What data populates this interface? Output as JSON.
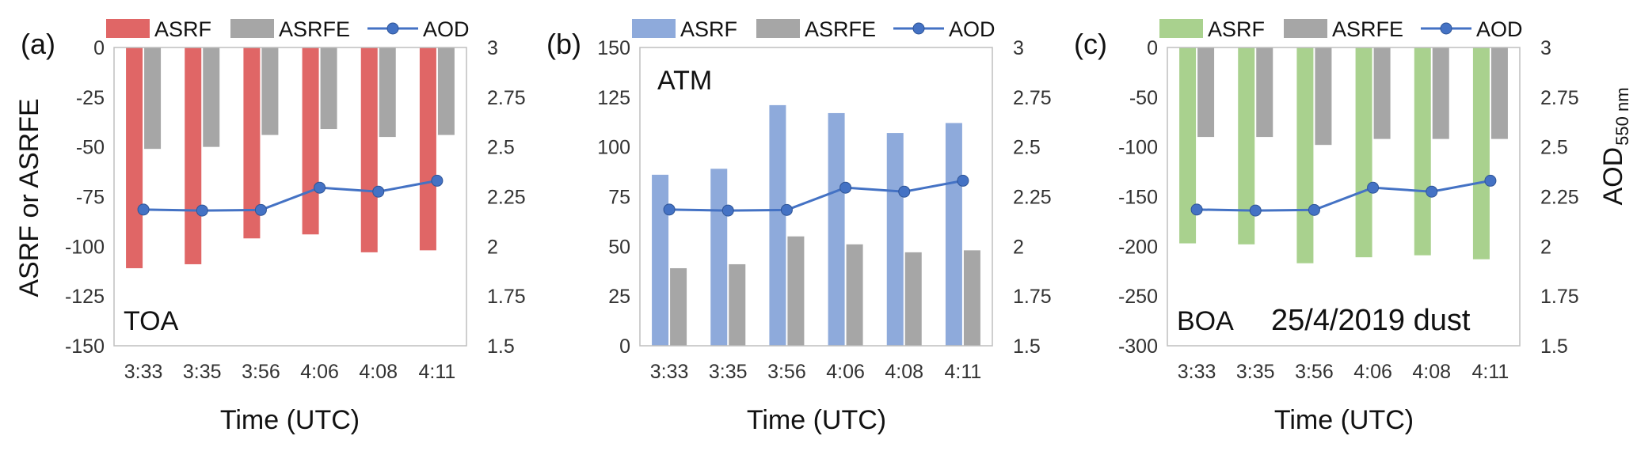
{
  "figure": {
    "x_axis_title": "Time (UTC)",
    "left_axis_title": "ASRF or ASRFE",
    "right_axis_title_main": "AOD",
    "right_axis_title_sub": "550 nm",
    "date_label": "25/4/2019 dust"
  },
  "colors": {
    "asrf_a": "#e06666",
    "asrf_b": "#8eaadb",
    "asrf_c": "#a9d18e",
    "asrfe": "#a6a6a6",
    "aod": "#4472c4",
    "aod_marker_edge": "#2f5597"
  },
  "chart_data": [
    {
      "type": "bar",
      "panel_label": "(a)",
      "annotation": "TOA",
      "categories": [
        "3:33",
        "3:35",
        "3:56",
        "4:06",
        "4:08",
        "4:11"
      ],
      "series": [
        {
          "name": "ASRF",
          "values": [
            -111,
            -109,
            -96,
            -94,
            -103,
            -102
          ]
        },
        {
          "name": "ASRFE",
          "values": [
            -51,
            -50,
            -44,
            -41,
            -45,
            -44
          ]
        },
        {
          "name": "AOD",
          "axis": "right",
          "line": true,
          "values": [
            2.185,
            2.18,
            2.183,
            2.295,
            2.275,
            2.33
          ]
        }
      ],
      "y_left": {
        "min": -150,
        "max": 0,
        "ticks": [
          "0",
          "-25",
          "-50",
          "-75",
          "-100",
          "-125",
          "-150"
        ]
      },
      "y_right": {
        "min": 1.5,
        "max": 3,
        "ticks": [
          "3",
          "2.75",
          "2.5",
          "2.25",
          "2",
          "1.75",
          "1.5"
        ]
      },
      "legend": "top",
      "grid": false
    },
    {
      "type": "bar",
      "panel_label": "(b)",
      "annotation": "ATM",
      "categories": [
        "3:33",
        "3:35",
        "3:56",
        "4:06",
        "4:08",
        "4:11"
      ],
      "series": [
        {
          "name": "ASRF",
          "values": [
            86,
            89,
            121,
            117,
            107,
            112
          ]
        },
        {
          "name": "ASRFE",
          "values": [
            39,
            41,
            55,
            51,
            47,
            48
          ]
        },
        {
          "name": "AOD",
          "axis": "right",
          "line": true,
          "values": [
            2.185,
            2.18,
            2.183,
            2.295,
            2.275,
            2.33
          ]
        }
      ],
      "y_left": {
        "min": 0,
        "max": 150,
        "ticks": [
          "150",
          "125",
          "100",
          "75",
          "50",
          "25",
          "0"
        ]
      },
      "y_right": {
        "min": 1.5,
        "max": 3,
        "ticks": [
          "3",
          "2.75",
          "2.5",
          "2.25",
          "2",
          "1.75",
          "1.5"
        ]
      },
      "legend": "top",
      "grid": false
    },
    {
      "type": "bar",
      "panel_label": "(c)",
      "annotation": "BOA",
      "categories": [
        "3:33",
        "3:35",
        "3:56",
        "4:06",
        "4:08",
        "4:11"
      ],
      "series": [
        {
          "name": "ASRF",
          "values": [
            -197,
            -198,
            -217,
            -211,
            -209,
            -213
          ]
        },
        {
          "name": "ASRFE",
          "values": [
            -90,
            -90,
            -98,
            -92,
            -92,
            -92
          ]
        },
        {
          "name": "AOD",
          "axis": "right",
          "line": true,
          "values": [
            2.185,
            2.18,
            2.183,
            2.295,
            2.275,
            2.33
          ]
        }
      ],
      "y_left": {
        "min": -300,
        "max": 0,
        "ticks": [
          "0",
          "-50",
          "-100",
          "-150",
          "-200",
          "-250",
          "-300"
        ]
      },
      "y_right": {
        "min": 1.5,
        "max": 3,
        "ticks": [
          "3",
          "2.75",
          "2.5",
          "2.25",
          "2",
          "1.75",
          "1.5"
        ]
      },
      "legend": "top",
      "grid": false
    }
  ]
}
